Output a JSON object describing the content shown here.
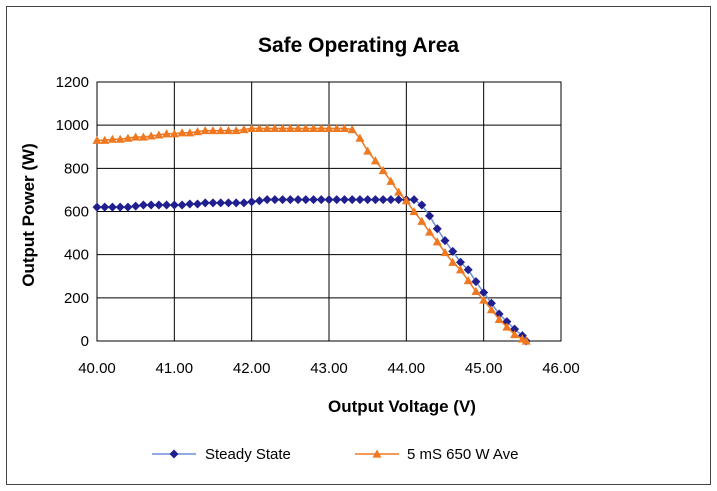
{
  "chart_data": {
    "type": "line",
    "title": "Safe Operating Area",
    "xlabel": "Output Voltage (V)",
    "ylabel": "Output Power (W)",
    "xlim": [
      40.0,
      46.0
    ],
    "ylim": [
      0,
      1200
    ],
    "xticks": [
      "40.00",
      "41.00",
      "42.00",
      "43.00",
      "44.00",
      "45.00",
      "46.00"
    ],
    "yticks": [
      "0",
      "200",
      "400",
      "600",
      "800",
      "1000",
      "1200"
    ],
    "grid": true,
    "legend_position": "bottom",
    "series": [
      {
        "name": "Steady State",
        "color": "#1f1f8f",
        "line_color": "#6f8fd8",
        "marker": "diamond",
        "x": [
          40.0,
          40.1,
          40.2,
          40.3,
          40.4,
          40.5,
          40.6,
          40.7,
          40.8,
          40.9,
          41.0,
          41.1,
          41.2,
          41.3,
          41.4,
          41.5,
          41.6,
          41.7,
          41.8,
          41.9,
          42.0,
          42.1,
          42.2,
          42.3,
          42.4,
          42.5,
          42.6,
          42.7,
          42.8,
          42.9,
          43.0,
          43.1,
          43.2,
          43.3,
          43.4,
          43.5,
          43.6,
          43.7,
          43.8,
          43.9,
          44.0,
          44.1,
          44.2,
          44.3,
          44.4,
          44.5,
          44.6,
          44.7,
          44.8,
          44.9,
          45.0,
          45.1,
          45.2,
          45.3,
          45.4,
          45.5,
          45.55
        ],
        "y": [
          620,
          620,
          620,
          620,
          620,
          625,
          630,
          630,
          630,
          630,
          630,
          630,
          635,
          635,
          640,
          640,
          640,
          640,
          640,
          640,
          645,
          650,
          655,
          655,
          655,
          655,
          655,
          655,
          655,
          655,
          655,
          655,
          655,
          655,
          655,
          655,
          655,
          655,
          655,
          655,
          655,
          655,
          630,
          580,
          520,
          465,
          415,
          365,
          330,
          275,
          225,
          175,
          125,
          90,
          55,
          25,
          0
        ]
      },
      {
        "name": "5 mS 650 W Ave",
        "color": "#f07820",
        "line_color": "#f07820",
        "marker": "triangle",
        "x": [
          40.0,
          40.1,
          40.2,
          40.3,
          40.4,
          40.5,
          40.6,
          40.7,
          40.8,
          40.9,
          41.0,
          41.1,
          41.2,
          41.3,
          41.4,
          41.5,
          41.6,
          41.7,
          41.8,
          41.9,
          42.0,
          42.1,
          42.2,
          42.3,
          42.4,
          42.5,
          42.6,
          42.7,
          42.8,
          42.9,
          43.0,
          43.1,
          43.2,
          43.3,
          43.4,
          43.5,
          43.6,
          43.7,
          43.8,
          43.9,
          44.0,
          44.1,
          44.2,
          44.3,
          44.4,
          44.5,
          44.6,
          44.7,
          44.8,
          44.9,
          45.0,
          45.1,
          45.2,
          45.3,
          45.4,
          45.5,
          45.55
        ],
        "y": [
          930,
          930,
          935,
          935,
          940,
          945,
          945,
          950,
          955,
          960,
          960,
          965,
          965,
          970,
          975,
          975,
          975,
          975,
          975,
          980,
          985,
          985,
          985,
          985,
          985,
          985,
          985,
          985,
          985,
          985,
          985,
          985,
          985,
          980,
          940,
          880,
          835,
          790,
          740,
          690,
          650,
          600,
          555,
          505,
          460,
          410,
          365,
          330,
          280,
          230,
          190,
          145,
          100,
          65,
          30,
          10,
          0
        ]
      }
    ]
  }
}
